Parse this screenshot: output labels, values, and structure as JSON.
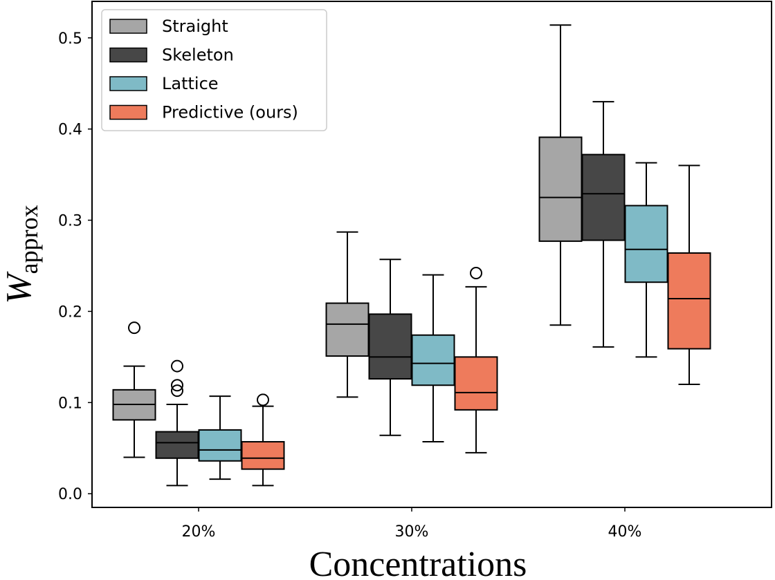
{
  "chart_data": {
    "type": "box",
    "categories": [
      "20%",
      "30%",
      "40%"
    ],
    "xlabel": "Concentrations",
    "ylabel": {
      "main": "W",
      "sub": "approx"
    },
    "ylim": [
      -0.015,
      0.54
    ],
    "yticks": [
      0.0,
      0.1,
      0.2,
      0.3,
      0.4,
      0.5
    ],
    "ytick_labels": [
      "0.0",
      "0.1",
      "0.2",
      "0.3",
      "0.4",
      "0.5"
    ],
    "legend": {
      "placement": "top-left"
    },
    "series": [
      {
        "name": "Straight",
        "color": "#a6a6a6",
        "boxes": [
          {
            "category": "20%",
            "whisker_low": 0.04,
            "q1": 0.081,
            "median": 0.098,
            "q3": 0.114,
            "whisker_high": 0.14,
            "outliers": [
              0.182
            ]
          },
          {
            "category": "30%",
            "whisker_low": 0.106,
            "q1": 0.151,
            "median": 0.186,
            "q3": 0.209,
            "whisker_high": 0.287,
            "outliers": []
          },
          {
            "category": "40%",
            "whisker_low": 0.185,
            "q1": 0.277,
            "median": 0.325,
            "q3": 0.391,
            "whisker_high": 0.514,
            "outliers": []
          }
        ]
      },
      {
        "name": "Skeleton",
        "color": "#474747",
        "boxes": [
          {
            "category": "20%",
            "whisker_low": 0.009,
            "q1": 0.039,
            "median": 0.056,
            "q3": 0.068,
            "whisker_high": 0.098,
            "outliers": [
              0.113,
              0.119,
              0.14
            ]
          },
          {
            "category": "30%",
            "whisker_low": 0.064,
            "q1": 0.126,
            "median": 0.15,
            "q3": 0.197,
            "whisker_high": 0.257,
            "outliers": []
          },
          {
            "category": "40%",
            "whisker_low": 0.161,
            "q1": 0.278,
            "median": 0.329,
            "q3": 0.372,
            "whisker_high": 0.43,
            "outliers": []
          }
        ]
      },
      {
        "name": "Lattice",
        "color": "#7fbac6",
        "boxes": [
          {
            "category": "20%",
            "whisker_low": 0.016,
            "q1": 0.036,
            "median": 0.048,
            "q3": 0.07,
            "whisker_high": 0.107,
            "outliers": []
          },
          {
            "category": "30%",
            "whisker_low": 0.057,
            "q1": 0.119,
            "median": 0.143,
            "q3": 0.174,
            "whisker_high": 0.24,
            "outliers": []
          },
          {
            "category": "40%",
            "whisker_low": 0.15,
            "q1": 0.232,
            "median": 0.268,
            "q3": 0.316,
            "whisker_high": 0.363,
            "outliers": []
          }
        ]
      },
      {
        "name": "Predictive (ours)",
        "color": "#ee7b5c",
        "boxes": [
          {
            "category": "20%",
            "whisker_low": 0.009,
            "q1": 0.027,
            "median": 0.039,
            "q3": 0.057,
            "whisker_high": 0.096,
            "outliers": [
              0.103
            ]
          },
          {
            "category": "30%",
            "whisker_low": 0.045,
            "q1": 0.092,
            "median": 0.111,
            "q3": 0.15,
            "whisker_high": 0.227,
            "outliers": [
              0.242
            ]
          },
          {
            "category": "40%",
            "whisker_low": 0.12,
            "q1": 0.159,
            "median": 0.214,
            "q3": 0.264,
            "whisker_high": 0.36,
            "outliers": []
          }
        ]
      }
    ]
  }
}
